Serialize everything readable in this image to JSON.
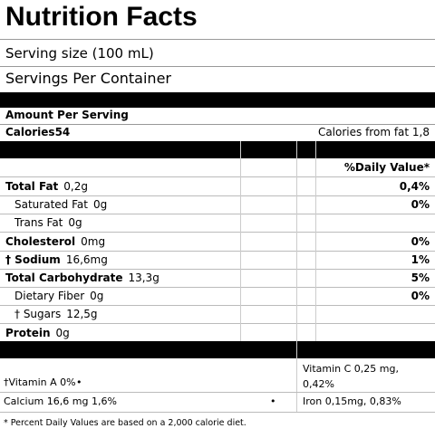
{
  "header": {
    "title": "Nutrition Facts",
    "serving_size": "Serving size  (100 mL)",
    "servings_per_container": "Servings Per Container"
  },
  "amount_per_serving": "Amount Per Serving",
  "calories": {
    "label": "Calories",
    "value": "54",
    "from_fat": "Calories from fat 1,8"
  },
  "daily_value_header": "%Daily Value*",
  "nutrients": [
    {
      "name": "Total Fat",
      "amount": "0,2g",
      "dv": "0,4%"
    },
    {
      "name": "Saturated Fat",
      "amount": "0g",
      "dv": "0%"
    },
    {
      "name": "Trans Fat",
      "amount": "0g"
    },
    {
      "name": "Cholesterol",
      "amount": "0mg",
      "dv": "0%"
    },
    {
      "name": "† Sodium",
      "amount": "16,6mg",
      "dv": "1%"
    },
    {
      "name": "Total Carbohydrate",
      "amount": "13,3g",
      "dv": "5%"
    },
    {
      "name": "Dietary Fiber",
      "amount": "0g",
      "dv": "0%"
    },
    {
      "name": "† Sugars",
      "amount": "12,5g"
    },
    {
      "name": "Protein",
      "amount": "0g"
    }
  ],
  "vitamins": [
    {
      "left": "†Vitamin A 0%",
      "bullet": "•",
      "right": "Vitamin C 0,25 mg, 0,42%"
    },
    {
      "left": "Calcium 16,6 mg  1,6%",
      "bullet": "•",
      "right": "Iron 0,15mg, 0,83%"
    }
  ],
  "footnote": "* Percent Daily Values are based on a 2,000 calorie diet."
}
